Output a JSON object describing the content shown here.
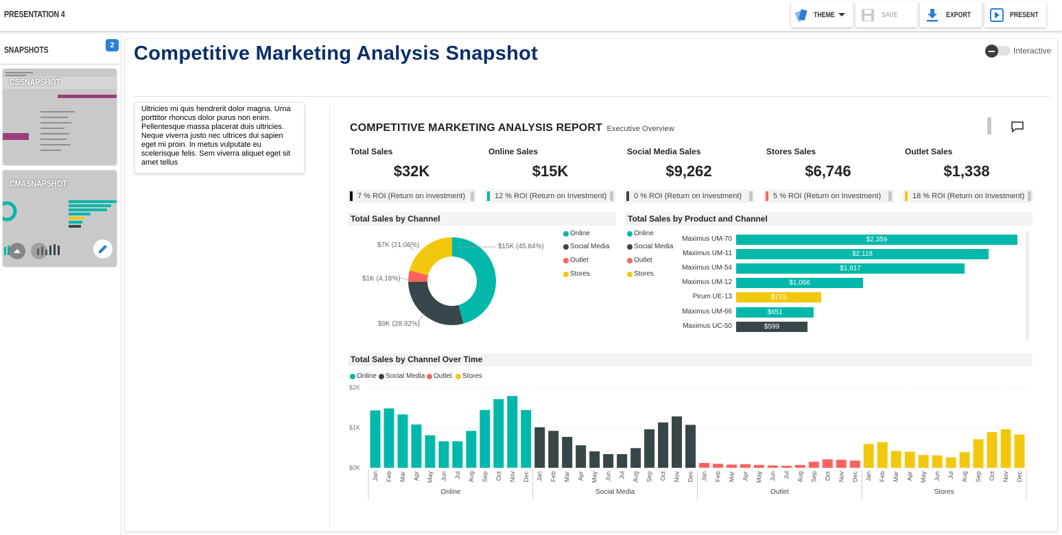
{
  "app": {
    "title": "PRESENTATION 4"
  },
  "toolbar": {
    "theme_label": "THEME",
    "save_label": "SAVE",
    "export_label": "EXPORT",
    "present_label": "PRESENT"
  },
  "sidebar": {
    "title": "SNAPSHOTS",
    "count": "2",
    "snapshots": [
      {
        "label": "CSSNAPSHOT"
      },
      {
        "label": "CMASNAPSHOT"
      }
    ]
  },
  "main": {
    "title": "Competitive Marketing Analysis Snapshot",
    "toggle_label": "Interactive",
    "note": "Ultricies mi quis hendrerit dolor magna. Urna porttitor rhoncus dolor purus non enim. Pellentesque massa placerat duis ultricies. Neque viverra justo nec ultrices dui sapien eget mi proin. In metus vulputate eu scelerisque felis. Sem viverra aliquet eget sit amet tellus"
  },
  "report": {
    "title": "COMPETITIVE MARKETING ANALYSIS REPORT",
    "subtitle": "Executive Overview",
    "kpis": [
      {
        "label": "Total Sales",
        "value": "$32K",
        "roi": "7 % ROI (Return on Investment)",
        "color": "#111111"
      },
      {
        "label": "Online Sales",
        "value": "$15K",
        "roi": "12 % ROI (Return on Investment)",
        "color": "#01B8AA"
      },
      {
        "label": "Social Media Sales",
        "value": "$9,262",
        "roi": "0 % ROI (Return on Investment)",
        "color": "#374649"
      },
      {
        "label": "Stores Sales",
        "value": "$6,746",
        "roi": "5 % ROI (Return on Investment)",
        "color": "#FD625E"
      },
      {
        "label": "Outlet Sales",
        "value": "$1,338",
        "roi": "18 % ROI (Return on Investment)",
        "color": "#F2C80F"
      }
    ],
    "colors": {
      "online": "#01B8AA",
      "social": "#374649",
      "outlet": "#FD625E",
      "stores": "#F2C80F"
    },
    "legend": [
      "Online",
      "Social Media",
      "Outlet",
      "Stores"
    ]
  },
  "chart_data": [
    {
      "type": "pie",
      "title": "Total Sales by Channel",
      "categories": [
        "Online",
        "Social Media",
        "Outlet",
        "Stores"
      ],
      "values": [
        15,
        9,
        1,
        7
      ],
      "data_labels": [
        "$15K (45.84%)",
        "$9K (28.92%)",
        "$1K (4.18%)",
        "$7K (21.06%)"
      ],
      "percents": [
        45.84,
        28.92,
        4.18,
        21.06
      ]
    },
    {
      "type": "bar",
      "title": "Total Sales by Product and Channel",
      "categories": [
        "Maximus UM-70",
        "Maximus UM-11",
        "Maximus UM-54",
        "Maximus UM-12",
        "Pirum UE-13",
        "Maximus UM-66",
        "Maximus UC-50"
      ],
      "values": [
        2359,
        2118,
        1917,
        1066,
        715,
        651,
        599
      ],
      "data_labels": [
        "$2,359",
        "$2,118",
        "$1,917",
        "$1,066",
        "$715",
        "$651",
        "$599"
      ],
      "channels": [
        "Online",
        "Online",
        "Online",
        "Online",
        "Stores",
        "Online",
        "Social Media"
      ]
    },
    {
      "type": "bar",
      "title": "Total Sales by Channel Over Time",
      "ylim": [
        0,
        2000
      ],
      "yticks": [
        "$0K",
        "$1K",
        "$2K"
      ],
      "months": [
        "Jan",
        "Feb",
        "Mar",
        "Apr",
        "May",
        "Jun",
        "Jul",
        "Aug",
        "Sep",
        "Oct",
        "Nov",
        "Dec"
      ],
      "series": [
        {
          "name": "Online",
          "values": [
            1430,
            1480,
            1330,
            1080,
            810,
            660,
            660,
            920,
            1440,
            1710,
            1790,
            1440
          ]
        },
        {
          "name": "Social Media",
          "values": [
            1010,
            920,
            770,
            560,
            410,
            340,
            340,
            490,
            960,
            1130,
            1280,
            1070
          ]
        },
        {
          "name": "Outlet",
          "values": [
            120,
            100,
            80,
            90,
            70,
            60,
            50,
            70,
            150,
            210,
            200,
            180
          ]
        },
        {
          "name": "Stores",
          "values": [
            590,
            640,
            420,
            400,
            320,
            310,
            260,
            390,
            710,
            890,
            960,
            830
          ]
        }
      ]
    }
  ]
}
